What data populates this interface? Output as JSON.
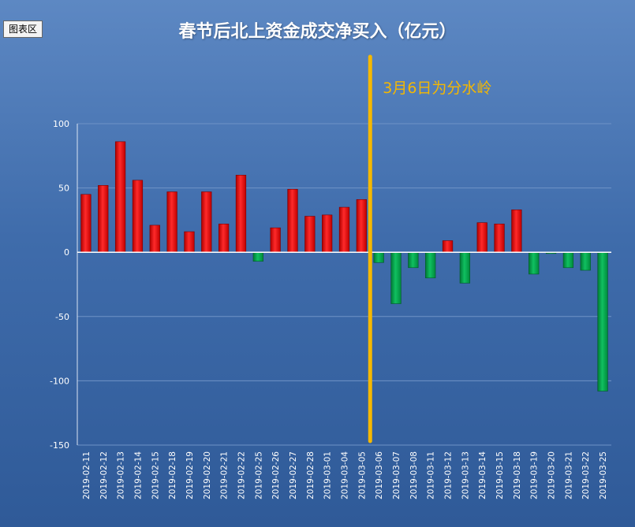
{
  "chart_tag": "图表区",
  "chart_data": {
    "type": "bar",
    "title": "春节后北上资金成交净买入（亿元）",
    "annotation": "3月6日为分水岭",
    "divider_after": "2019-03-05",
    "ylim": [
      -150,
      100
    ],
    "yticks": [
      100,
      50,
      0,
      -50,
      -100,
      -150
    ],
    "grid": true,
    "colors": {
      "positive": "#ff0000",
      "negative": "#00b050",
      "divider": "#f5b800"
    },
    "categories": [
      "2019-02-11",
      "2019-02-12",
      "2019-02-13",
      "2019-02-14",
      "2019-02-15",
      "2019-02-18",
      "2019-02-19",
      "2019-02-20",
      "2019-02-21",
      "2019-02-22",
      "2019-02-25",
      "2019-02-26",
      "2019-02-27",
      "2019-02-28",
      "2019-03-01",
      "2019-03-04",
      "2019-03-05",
      "2019-03-06",
      "2019-03-07",
      "2019-03-08",
      "2019-03-11",
      "2019-03-12",
      "2019-03-13",
      "2019-03-14",
      "2019-03-15",
      "2019-03-18",
      "2019-03-19",
      "2019-03-20",
      "2019-03-21",
      "2019-03-22",
      "2019-03-25"
    ],
    "values": [
      45,
      52,
      86,
      56,
      21,
      47,
      16,
      47,
      22,
      60,
      -7,
      19,
      49,
      28,
      29,
      35,
      41,
      -8,
      -40,
      -12,
      -20,
      9,
      -24,
      23,
      22,
      33,
      -17,
      -1,
      -12,
      -14,
      -108
    ]
  }
}
